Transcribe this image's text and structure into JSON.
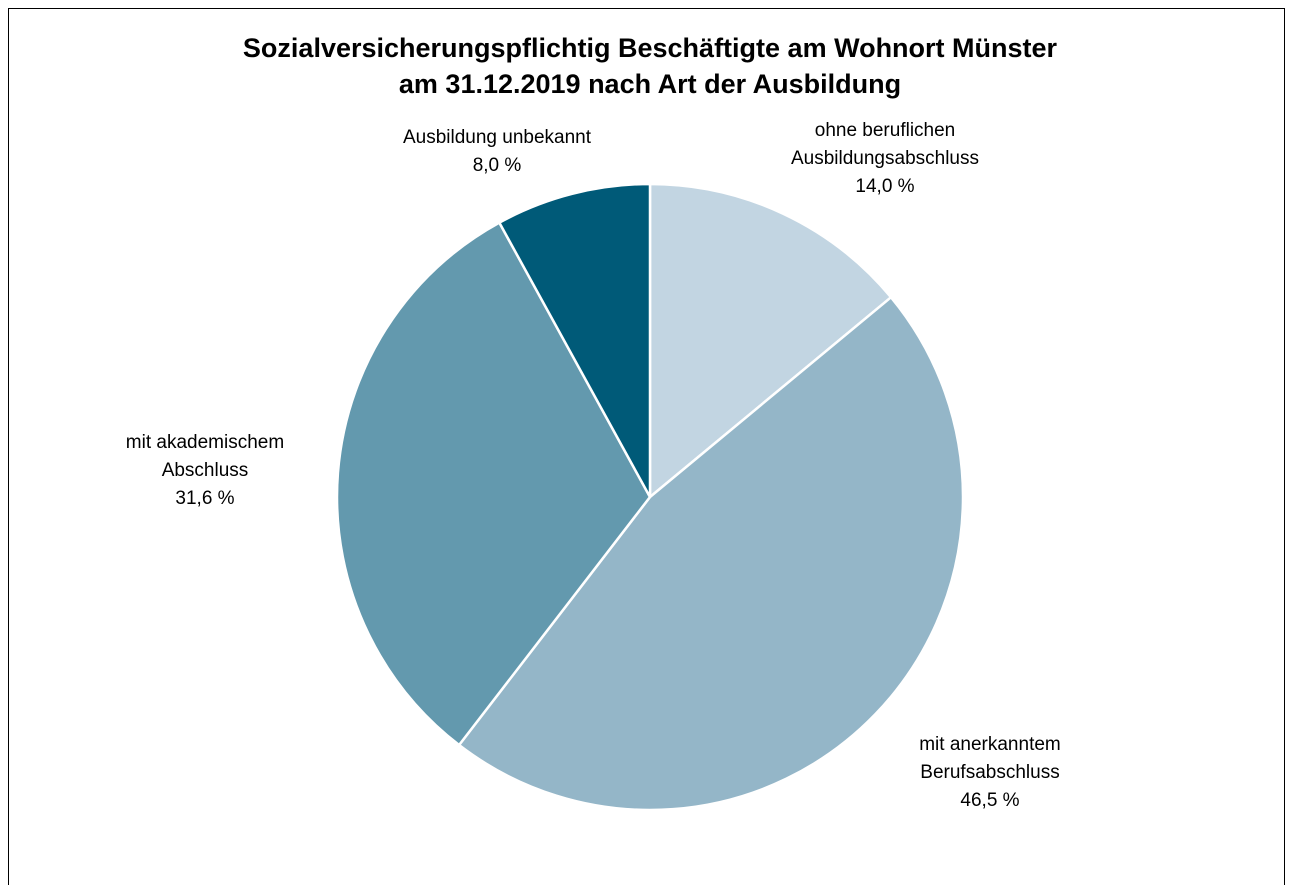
{
  "chart_data": {
    "type": "pie",
    "title": [
      "Sozialversicherungspflichtig Beschäftigte am Wohnort Münster",
      "am 31.12.2019 nach Art der Ausbildung"
    ],
    "categories": [
      [
        "ohne beruflichen",
        "Ausbildungsabschluss"
      ],
      [
        "mit anerkanntem",
        "Berufsabschluss"
      ],
      [
        "mit akademischem",
        "Abschluss"
      ],
      [
        "Ausbildung unbekannt"
      ]
    ],
    "values": [
      14.0,
      46.5,
      31.6,
      8.0
    ],
    "value_labels": [
      "14,0 %",
      "46,5 %",
      "31,6 %",
      "8,0 %"
    ],
    "colors": [
      "#c2d5e2",
      "#94b6c8",
      "#6399ae",
      "#005a78"
    ]
  }
}
